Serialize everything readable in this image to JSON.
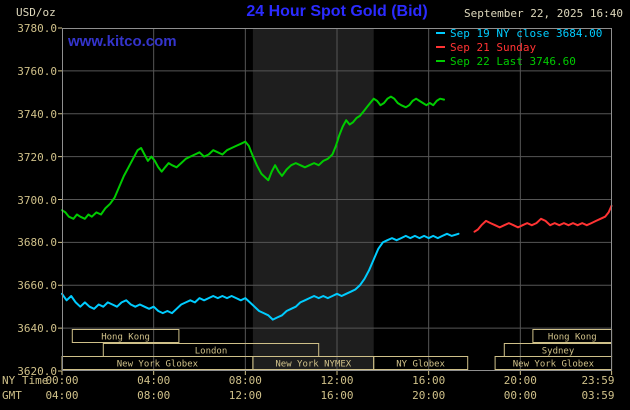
{
  "header": {
    "unit": "USD/oz",
    "title": "24 Hour Spot Gold (Bid)",
    "datetime": "September 22, 2025 16:40",
    "watermark": "www.kitco.com"
  },
  "legend": {
    "items": [
      {
        "text": "Sep 19 NY close 3684.00",
        "color": "#00ccff"
      },
      {
        "text": "Sep 21 Sunday",
        "color": "#ff3333"
      },
      {
        "text": "Sep 22 Last 3746.60",
        "color": "#00cc00"
      }
    ]
  },
  "axes": {
    "ny_time_label": "NY Time",
    "gmt_label": "GMT",
    "ny_ticks": [
      {
        "hour": 0,
        "label": "00:00"
      },
      {
        "hour": 4,
        "label": "04:00"
      },
      {
        "hour": 8,
        "label": "08:00"
      },
      {
        "hour": 12,
        "label": "12:00"
      },
      {
        "hour": 16,
        "label": "16:00"
      },
      {
        "hour": 20,
        "label": "20:00"
      },
      {
        "hour": 23.983,
        "label": "23:59"
      }
    ],
    "gmt_ticks": [
      {
        "hour": 0,
        "label": "04:00"
      },
      {
        "hour": 4,
        "label": "08:00"
      },
      {
        "hour": 8,
        "label": "12:00"
      },
      {
        "hour": 12,
        "label": "16:00"
      },
      {
        "hour": 16,
        "label": "20:00"
      },
      {
        "hour": 20,
        "label": "00:00"
      },
      {
        "hour": 23.983,
        "label": "03:59"
      }
    ],
    "y_ticks": [
      {
        "value": 3780,
        "label": "3780.0"
      },
      {
        "value": 3760,
        "label": "3760.0"
      },
      {
        "value": 3740,
        "label": "3740.0"
      },
      {
        "value": 3720,
        "label": "3720.0"
      },
      {
        "value": 3700,
        "label": "3700.0"
      },
      {
        "value": 3680,
        "label": "3680.0"
      },
      {
        "value": 3660,
        "label": "3660.0"
      },
      {
        "value": 3640,
        "label": "3640.0"
      },
      {
        "value": 3620,
        "label": "3620.0"
      }
    ]
  },
  "sessions": [
    {
      "row": 0,
      "label": "Hong Kong",
      "start": 0.45,
      "end": 5.1
    },
    {
      "row": 0,
      "label": "Hong Kong",
      "start": 20.55,
      "end": 23.983
    },
    {
      "row": 1,
      "label": "London",
      "start": 1.8,
      "end": 11.2
    },
    {
      "row": 1,
      "label": "Sydney",
      "start": 19.3,
      "end": 23.983
    },
    {
      "row": 2,
      "label": "New York Globex",
      "start": 0,
      "end": 8.33
    },
    {
      "row": 2,
      "label": "New York NYMEX",
      "start": 8.33,
      "end": 13.6
    },
    {
      "row": 2,
      "label": "NY Globex",
      "start": 13.6,
      "end": 17.7
    },
    {
      "row": 2,
      "label": "New York Globex",
      "start": 18.9,
      "end": 23.983
    }
  ],
  "colors": {
    "background": "#000000",
    "grid": "#565656",
    "frame": "#8f8f8f",
    "highlight_band": "#1e1e1e",
    "session": "#cfc089",
    "axis_text": "#cfc089",
    "info_text": "#ded8bc",
    "title": "#2b2bff",
    "watermark": "#3434cc"
  },
  "chart_data": {
    "type": "line",
    "title": "24 Hour Spot Gold (Bid)",
    "ylabel": "USD/oz",
    "xlabel": "NY Time (hours 0-24)",
    "xlim": [
      0,
      24
    ],
    "ylim": [
      3620,
      3780
    ],
    "grid": true,
    "legend_position": "top-right",
    "highlight_band": {
      "x0": 8.33,
      "x1": 13.6,
      "note": "New York NYMEX session shading"
    },
    "series": [
      {
        "id": "sep19",
        "name": "Sep 19 NY close 3684.00",
        "color": "#00ccff",
        "points": [
          [
            0.0,
            3656
          ],
          [
            0.2,
            3653
          ],
          [
            0.4,
            3655
          ],
          [
            0.6,
            3652
          ],
          [
            0.8,
            3650
          ],
          [
            1.0,
            3652
          ],
          [
            1.2,
            3650
          ],
          [
            1.4,
            3649
          ],
          [
            1.6,
            3651
          ],
          [
            1.8,
            3650
          ],
          [
            2.0,
            3652
          ],
          [
            2.2,
            3651
          ],
          [
            2.4,
            3650
          ],
          [
            2.6,
            3652
          ],
          [
            2.8,
            3653
          ],
          [
            3.0,
            3651
          ],
          [
            3.2,
            3650
          ],
          [
            3.4,
            3651
          ],
          [
            3.6,
            3650
          ],
          [
            3.8,
            3649
          ],
          [
            4.0,
            3650
          ],
          [
            4.2,
            3648
          ],
          [
            4.4,
            3647
          ],
          [
            4.6,
            3648
          ],
          [
            4.8,
            3647
          ],
          [
            5.0,
            3649
          ],
          [
            5.2,
            3651
          ],
          [
            5.4,
            3652
          ],
          [
            5.6,
            3653
          ],
          [
            5.8,
            3652
          ],
          [
            6.0,
            3654
          ],
          [
            6.2,
            3653
          ],
          [
            6.4,
            3654
          ],
          [
            6.6,
            3655
          ],
          [
            6.8,
            3654
          ],
          [
            7.0,
            3655
          ],
          [
            7.2,
            3654
          ],
          [
            7.4,
            3655
          ],
          [
            7.6,
            3654
          ],
          [
            7.8,
            3653
          ],
          [
            8.0,
            3654
          ],
          [
            8.2,
            3652
          ],
          [
            8.4,
            3650
          ],
          [
            8.6,
            3648
          ],
          [
            8.8,
            3647
          ],
          [
            9.0,
            3646
          ],
          [
            9.2,
            3644
          ],
          [
            9.4,
            3645
          ],
          [
            9.6,
            3646
          ],
          [
            9.8,
            3648
          ],
          [
            10.0,
            3649
          ],
          [
            10.2,
            3650
          ],
          [
            10.4,
            3652
          ],
          [
            10.6,
            3653
          ],
          [
            10.8,
            3654
          ],
          [
            11.0,
            3655
          ],
          [
            11.2,
            3654
          ],
          [
            11.4,
            3655
          ],
          [
            11.6,
            3654
          ],
          [
            11.8,
            3655
          ],
          [
            12.0,
            3656
          ],
          [
            12.2,
            3655
          ],
          [
            12.4,
            3656
          ],
          [
            12.6,
            3657
          ],
          [
            12.8,
            3658
          ],
          [
            13.0,
            3660
          ],
          [
            13.2,
            3663
          ],
          [
            13.4,
            3667
          ],
          [
            13.6,
            3672
          ],
          [
            13.8,
            3677
          ],
          [
            14.0,
            3680
          ],
          [
            14.2,
            3681
          ],
          [
            14.4,
            3682
          ],
          [
            14.6,
            3681
          ],
          [
            14.8,
            3682
          ],
          [
            15.0,
            3683
          ],
          [
            15.2,
            3682
          ],
          [
            15.4,
            3683
          ],
          [
            15.6,
            3682
          ],
          [
            15.8,
            3683
          ],
          [
            16.0,
            3682
          ],
          [
            16.2,
            3683
          ],
          [
            16.4,
            3682
          ],
          [
            16.6,
            3683
          ],
          [
            16.8,
            3684
          ],
          [
            17.0,
            3683
          ],
          [
            17.3,
            3684
          ]
        ]
      },
      {
        "id": "sep21",
        "name": "Sep 21 Sunday",
        "color": "#ff3333",
        "points": [
          [
            18.0,
            3685
          ],
          [
            18.15,
            3686
          ],
          [
            18.3,
            3688
          ],
          [
            18.5,
            3690
          ],
          [
            18.7,
            3689
          ],
          [
            18.9,
            3688
          ],
          [
            19.1,
            3687
          ],
          [
            19.3,
            3688
          ],
          [
            19.5,
            3689
          ],
          [
            19.7,
            3688
          ],
          [
            19.9,
            3687
          ],
          [
            20.1,
            3688
          ],
          [
            20.3,
            3689
          ],
          [
            20.5,
            3688
          ],
          [
            20.7,
            3689
          ],
          [
            20.9,
            3691
          ],
          [
            21.1,
            3690
          ],
          [
            21.3,
            3688
          ],
          [
            21.5,
            3689
          ],
          [
            21.7,
            3688
          ],
          [
            21.9,
            3689
          ],
          [
            22.1,
            3688
          ],
          [
            22.3,
            3689
          ],
          [
            22.5,
            3688
          ],
          [
            22.7,
            3689
          ],
          [
            22.9,
            3688
          ],
          [
            23.1,
            3689
          ],
          [
            23.3,
            3690
          ],
          [
            23.5,
            3691
          ],
          [
            23.7,
            3692
          ],
          [
            23.85,
            3694
          ],
          [
            23.98,
            3697
          ]
        ]
      },
      {
        "id": "sep22",
        "name": "Sep 22 Last 3746.60",
        "color": "#00cc00",
        "points": [
          [
            0.0,
            3695
          ],
          [
            0.15,
            3694
          ],
          [
            0.3,
            3692
          ],
          [
            0.5,
            3691
          ],
          [
            0.65,
            3693
          ],
          [
            0.8,
            3692
          ],
          [
            1.0,
            3691
          ],
          [
            1.15,
            3693
          ],
          [
            1.3,
            3692
          ],
          [
            1.5,
            3694
          ],
          [
            1.7,
            3693
          ],
          [
            1.9,
            3696
          ],
          [
            2.1,
            3698
          ],
          [
            2.3,
            3701
          ],
          [
            2.5,
            3706
          ],
          [
            2.7,
            3711
          ],
          [
            2.9,
            3715
          ],
          [
            3.1,
            3719
          ],
          [
            3.3,
            3723
          ],
          [
            3.45,
            3724
          ],
          [
            3.6,
            3721
          ],
          [
            3.75,
            3718
          ],
          [
            3.9,
            3720
          ],
          [
            4.05,
            3718
          ],
          [
            4.2,
            3715
          ],
          [
            4.35,
            3713
          ],
          [
            4.5,
            3715
          ],
          [
            4.65,
            3717
          ],
          [
            4.8,
            3716
          ],
          [
            5.0,
            3715
          ],
          [
            5.2,
            3717
          ],
          [
            5.4,
            3719
          ],
          [
            5.6,
            3720
          ],
          [
            5.8,
            3721
          ],
          [
            6.0,
            3722
          ],
          [
            6.2,
            3720
          ],
          [
            6.4,
            3721
          ],
          [
            6.6,
            3723
          ],
          [
            6.8,
            3722
          ],
          [
            7.0,
            3721
          ],
          [
            7.2,
            3723
          ],
          [
            7.4,
            3724
          ],
          [
            7.6,
            3725
          ],
          [
            7.8,
            3726
          ],
          [
            8.0,
            3727
          ],
          [
            8.15,
            3725
          ],
          [
            8.3,
            3721
          ],
          [
            8.5,
            3716
          ],
          [
            8.7,
            3712
          ],
          [
            8.9,
            3710
          ],
          [
            9.0,
            3709
          ],
          [
            9.15,
            3713
          ],
          [
            9.3,
            3716
          ],
          [
            9.45,
            3713
          ],
          [
            9.6,
            3711
          ],
          [
            9.8,
            3714
          ],
          [
            10.0,
            3716
          ],
          [
            10.2,
            3717
          ],
          [
            10.4,
            3716
          ],
          [
            10.6,
            3715
          ],
          [
            10.8,
            3716
          ],
          [
            11.0,
            3717
          ],
          [
            11.2,
            3716
          ],
          [
            11.4,
            3718
          ],
          [
            11.6,
            3719
          ],
          [
            11.8,
            3721
          ],
          [
            11.95,
            3725
          ],
          [
            12.1,
            3730
          ],
          [
            12.25,
            3734
          ],
          [
            12.4,
            3737
          ],
          [
            12.55,
            3735
          ],
          [
            12.7,
            3736
          ],
          [
            12.85,
            3738
          ],
          [
            13.0,
            3739
          ],
          [
            13.15,
            3741
          ],
          [
            13.3,
            3743
          ],
          [
            13.45,
            3745
          ],
          [
            13.6,
            3747
          ],
          [
            13.75,
            3746
          ],
          [
            13.9,
            3744
          ],
          [
            14.05,
            3745
          ],
          [
            14.2,
            3747
          ],
          [
            14.35,
            3748
          ],
          [
            14.5,
            3747
          ],
          [
            14.65,
            3745
          ],
          [
            14.8,
            3744
          ],
          [
            15.0,
            3743
          ],
          [
            15.15,
            3744
          ],
          [
            15.3,
            3746
          ],
          [
            15.45,
            3747
          ],
          [
            15.6,
            3746
          ],
          [
            15.75,
            3745
          ],
          [
            15.9,
            3744
          ],
          [
            16.05,
            3745
          ],
          [
            16.2,
            3744
          ],
          [
            16.35,
            3746
          ],
          [
            16.5,
            3747
          ],
          [
            16.67,
            3746.6
          ]
        ]
      }
    ]
  }
}
